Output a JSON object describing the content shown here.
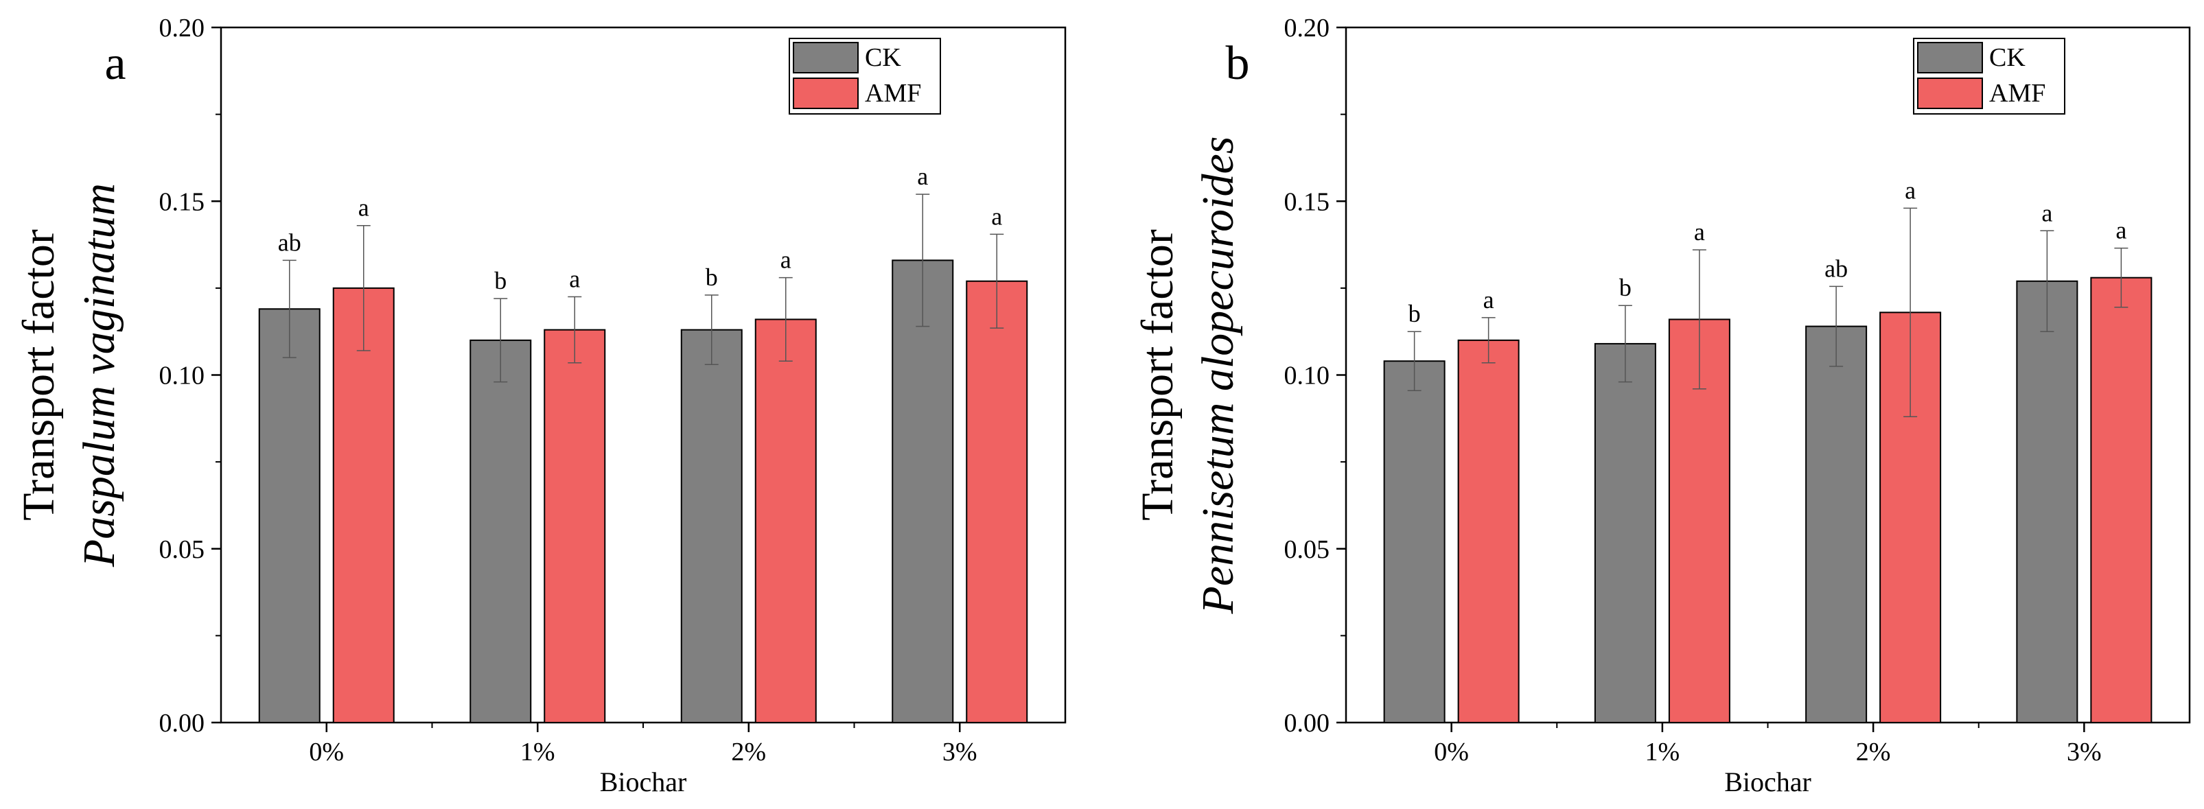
{
  "chart_data": [
    {
      "type": "bar",
      "panel_label": "a",
      "title": "",
      "ylabel": "Transport factor",
      "ylabel_species": "Paspalum vaginatum",
      "xlabel": "Biochar",
      "categories": [
        "0%",
        "1%",
        "2%",
        "3%"
      ],
      "ylim": [
        0,
        0.2
      ],
      "yticks": [
        "0.00",
        "0.05",
        "0.10",
        "0.15",
        "0.20"
      ],
      "legend_position": "top-right",
      "series": [
        {
          "name": "CK",
          "color": "#808080",
          "values": [
            0.119,
            0.11,
            0.113,
            0.133
          ],
          "errors": [
            0.014,
            0.012,
            0.01,
            0.019
          ],
          "letters": [
            "ab",
            "b",
            "b",
            "a"
          ]
        },
        {
          "name": "AMF",
          "color": "#f06262",
          "values": [
            0.125,
            0.113,
            0.116,
            0.127
          ],
          "errors": [
            0.018,
            0.0095,
            0.012,
            0.0135
          ],
          "letters": [
            "a",
            "a",
            "a",
            "a"
          ]
        }
      ]
    },
    {
      "type": "bar",
      "panel_label": "b",
      "title": "",
      "ylabel": "Transport factor",
      "ylabel_species": "Pennisetum alopecuroides",
      "xlabel": "Biochar",
      "categories": [
        "0%",
        "1%",
        "2%",
        "3%"
      ],
      "ylim": [
        0,
        0.2
      ],
      "yticks": [
        "0.00",
        "0.05",
        "0.10",
        "0.15",
        "0.20"
      ],
      "legend_position": "top-right",
      "series": [
        {
          "name": "CK",
          "color": "#808080",
          "values": [
            0.104,
            0.109,
            0.114,
            0.127
          ],
          "errors": [
            0.0085,
            0.011,
            0.0115,
            0.0145
          ],
          "letters": [
            "b",
            "b",
            "ab",
            "a"
          ]
        },
        {
          "name": "AMF",
          "color": "#f06262",
          "values": [
            0.11,
            0.116,
            0.118,
            0.128
          ],
          "errors": [
            0.0065,
            0.02,
            0.03,
            0.0085
          ],
          "letters": [
            "a",
            "a",
            "a",
            "a"
          ]
        }
      ]
    }
  ]
}
